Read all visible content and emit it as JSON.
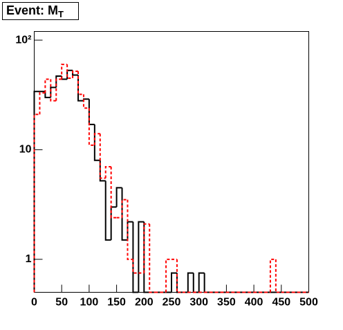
{
  "chart_data": {
    "type": "histogram",
    "title": "Event: M",
    "title_subscript": "T",
    "bins": [
      0,
      10,
      20,
      30,
      40,
      50,
      60,
      70,
      80,
      90,
      100,
      110,
      120,
      130,
      140,
      150,
      160,
      170,
      180,
      190,
      200,
      210,
      220,
      230,
      240,
      250,
      260,
      270,
      280,
      290,
      300,
      310,
      320,
      330,
      340,
      350,
      360,
      370,
      380,
      390,
      400,
      410,
      420,
      430,
      440,
      450,
      460,
      470,
      480,
      490,
      500
    ],
    "series": [
      {
        "color": "#000000",
        "line_style": "solid",
        "values": [
          34,
          34,
          30,
          37,
          47,
          44,
          53,
          48,
          28,
          29,
          17,
          8,
          5.2,
          1.5,
          3,
          4.5,
          1.5,
          2.2,
          0,
          2.2,
          0,
          0,
          0,
          0,
          0,
          0.75,
          0,
          0,
          0.75,
          0,
          0.75,
          0,
          0,
          0,
          0,
          0,
          0,
          0,
          0,
          0,
          0,
          0,
          0,
          0,
          0,
          0,
          0,
          0,
          0,
          0
        ]
      },
      {
        "color": "#ff0000",
        "line_style": "dashed",
        "values": [
          21,
          33,
          44,
          28,
          44,
          60,
          45,
          52,
          32,
          24,
          11,
          14,
          5.5,
          7,
          2.4,
          2.4,
          3.5,
          1.0,
          0.75,
          0.75,
          2.1,
          0,
          0,
          0,
          1.0,
          1.0,
          0,
          0,
          0,
          0,
          0,
          0,
          0,
          0,
          0,
          0,
          0,
          0,
          0,
          0,
          0,
          0,
          0,
          1.0,
          0,
          0,
          0,
          0,
          0,
          0
        ]
      }
    ],
    "xlim": [
      0,
      500
    ],
    "xticks": [
      0,
      50,
      100,
      150,
      200,
      250,
      300,
      350,
      400,
      450,
      500
    ],
    "ylim": [
      0.5,
      120
    ],
    "log_y": true,
    "yticks": [
      1,
      10,
      {
        "value": 100,
        "label": "10²"
      }
    ]
  }
}
